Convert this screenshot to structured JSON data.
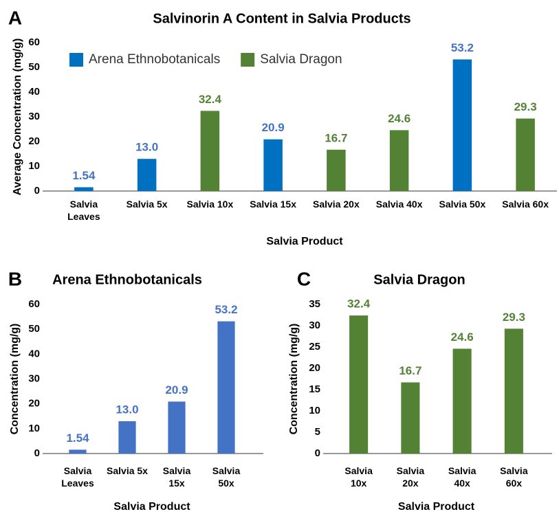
{
  "chart_data": [
    {
      "type": "bar",
      "panel": "A",
      "title": "Salvinorin A Content in Salvia Products",
      "x_label": "Salvia Product",
      "y_label": "Average Concentration (mg/g)",
      "categories": [
        "Salvia Leaves",
        "Salvia 5x",
        "Salvia 10x",
        "Salvia 15x",
        "Salvia 20x",
        "Salvia 40x",
        "Salvia 50x",
        "Salvia 60x"
      ],
      "series": [
        {
          "name": "Arena Ethnobotanicals",
          "color": "#0070c0",
          "label_color": "#4472c4",
          "values": [
            1.54,
            13.0,
            null,
            20.9,
            null,
            null,
            53.2,
            null
          ],
          "value_labels": [
            "1.54",
            "13.0",
            null,
            "20.9",
            null,
            null,
            "53.2",
            null
          ]
        },
        {
          "name": "Salvia Dragon",
          "color": "#548235",
          "label_color": "#548235",
          "values": [
            null,
            null,
            32.4,
            null,
            16.7,
            24.6,
            null,
            29.3
          ],
          "value_labels": [
            null,
            null,
            "32.4",
            null,
            "16.7",
            "24.6",
            null,
            "29.3"
          ]
        }
      ],
      "ylim": [
        0,
        60
      ],
      "yticks": [
        0,
        10,
        20,
        30,
        40,
        50,
        60
      ],
      "legend": "top-left"
    },
    {
      "type": "bar",
      "panel": "B",
      "title": "Arena Ethnobotanicals",
      "x_label": "Salvia Product",
      "y_label": "Concentration (mg/g)",
      "categories": [
        "Salvia Leaves",
        "Salvia 5x",
        "Salvia 15x",
        "Salvia 50x"
      ],
      "series": [
        {
          "color": "#4472c4",
          "label_color": "#4472c4",
          "values": [
            1.54,
            13.0,
            20.9,
            53.2
          ],
          "value_labels": [
            "1.54",
            "13.0",
            "20.9",
            "53.2"
          ]
        }
      ],
      "ylim": [
        0,
        60
      ],
      "yticks": [
        0,
        10,
        20,
        30,
        40,
        50,
        60
      ]
    },
    {
      "type": "bar",
      "panel": "C",
      "title": "Salvia Dragon",
      "x_label": "Salvia Product",
      "y_label": "Concentration (mg/g)",
      "categories": [
        "Salvia 10x",
        "Salvia 20x",
        "Salvia 40x",
        "Salvia 60x"
      ],
      "series": [
        {
          "color": "#548235",
          "label_color": "#548235",
          "values": [
            32.4,
            16.7,
            24.6,
            29.3
          ],
          "value_labels": [
            "32.4",
            "16.7",
            "24.6",
            "29.3"
          ]
        }
      ],
      "ylim": [
        0,
        35
      ],
      "yticks": [
        0,
        5,
        10,
        15,
        20,
        25,
        30,
        35
      ]
    }
  ]
}
